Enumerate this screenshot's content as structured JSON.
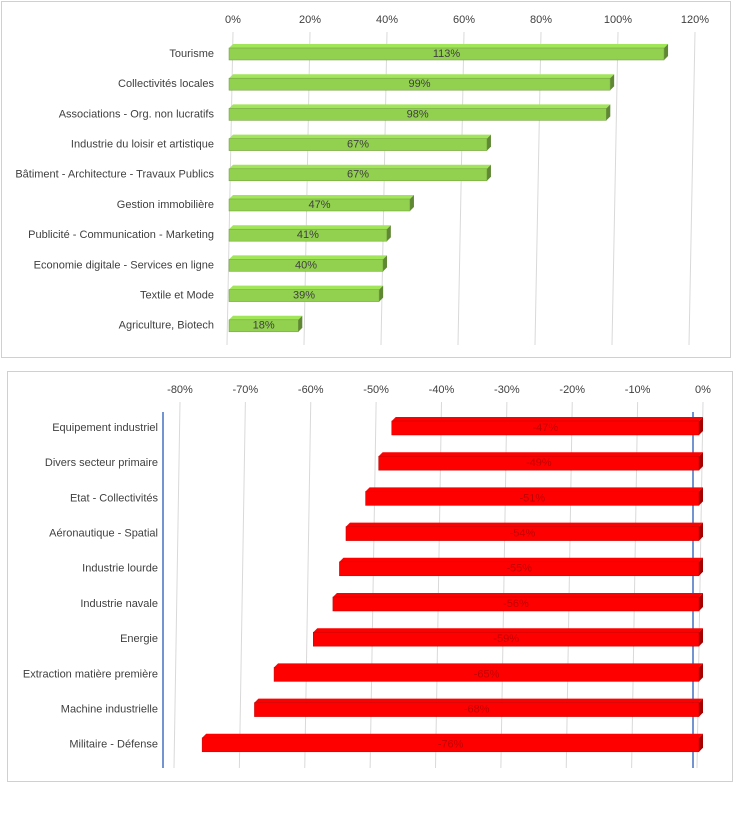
{
  "chart_data": [
    {
      "type": "bar",
      "orientation": "horizontal",
      "color": "#92d050",
      "categories": [
        "Tourisme",
        "Collectivités locales",
        "Associations - Org. non lucratifs",
        "Industrie du loisir et artistique",
        "Bâtiment - Architecture - Travaux Publics",
        "Gestion immobilière",
        "Publicité - Communication - Marketing",
        "Economie digitale - Services en ligne",
        "Textile et Mode",
        "Agriculture, Biotech"
      ],
      "values": [
        113,
        99,
        98,
        67,
        67,
        47,
        41,
        40,
        39,
        18
      ],
      "value_labels": [
        "113%",
        "99%",
        "98%",
        "67%",
        "67%",
        "47%",
        "41%",
        "40%",
        "39%",
        "18%"
      ],
      "xlim": [
        0,
        120
      ],
      "xticks": [
        {
          "value": 0,
          "label": "0%"
        },
        {
          "value": 20,
          "label": "20%"
        },
        {
          "value": 40,
          "label": "40%"
        },
        {
          "value": 60,
          "label": "60%"
        },
        {
          "value": 80,
          "label": "80%"
        },
        {
          "value": 100,
          "label": "100%"
        },
        {
          "value": 120,
          "label": "120%"
        }
      ],
      "grid": true
    },
    {
      "type": "bar",
      "orientation": "horizontal",
      "color": "#ff0000",
      "categories": [
        "Equipement industriel",
        "Divers secteur primaire",
        "Etat - Collectivités",
        "Aéronautique - Spatial",
        "Industrie lourde",
        "Industrie navale",
        "Energie",
        "Extraction matière première",
        "Machine industrielle",
        "Militaire - Défense"
      ],
      "values": [
        -47,
        -49,
        -51,
        -54,
        -55,
        -56,
        -59,
        -65,
        -68,
        -76
      ],
      "value_labels": [
        "-47%",
        "-49%",
        "-51%",
        "-54%",
        "-55%",
        "-56%",
        "-59%",
        "-65%",
        "-68%",
        "-76%"
      ],
      "xlim": [
        -80,
        0
      ],
      "xticks": [
        {
          "value": -80,
          "label": "-80%"
        },
        {
          "value": -70,
          "label": "-70%"
        },
        {
          "value": -60,
          "label": "-60%"
        },
        {
          "value": -50,
          "label": "-50%"
        },
        {
          "value": -40,
          "label": "-40%"
        },
        {
          "value": -30,
          "label": "-30%"
        },
        {
          "value": -20,
          "label": "-20%"
        },
        {
          "value": -10,
          "label": "-10%"
        },
        {
          "value": 0,
          "label": "0%"
        }
      ],
      "grid": true
    }
  ]
}
